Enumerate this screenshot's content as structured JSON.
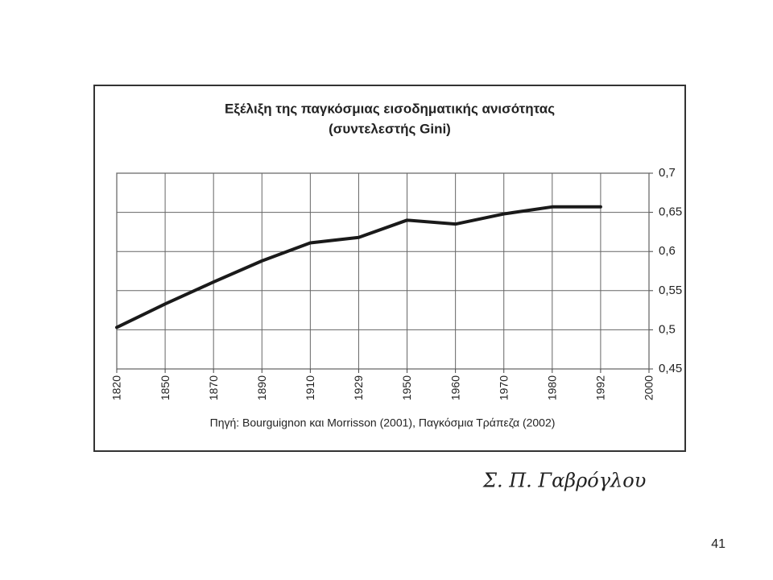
{
  "chart_data": {
    "type": "line",
    "title": "Εξέλιξη της παγκόσμιας εισοδηματικής ανισότητας",
    "subtitle": "(συντελεστής Gini)",
    "categories": [
      "1820",
      "1850",
      "1870",
      "1890",
      "1910",
      "1929",
      "1950",
      "1960",
      "1970",
      "1980",
      "1992",
      "2000"
    ],
    "values": [
      0.503,
      0.533,
      0.561,
      0.588,
      0.611,
      0.618,
      0.64,
      0.635,
      0.648,
      0.657,
      0.657,
      null
    ],
    "color": "#1a1a1a",
    "ylim": [
      0.45,
      0.7
    ],
    "yticks": [
      {
        "value": 0.45,
        "label": "0,45"
      },
      {
        "value": 0.5,
        "label": "0,5"
      },
      {
        "value": 0.55,
        "label": "0,55"
      },
      {
        "value": 0.6,
        "label": "0,6"
      },
      {
        "value": 0.65,
        "label": "0,65"
      },
      {
        "value": 0.7,
        "label": "0,7"
      }
    ],
    "grid": true,
    "source": "Πηγή: Bourguignon και Morrisson (2001), Παγκόσμια Τράπεζα (2002)"
  },
  "signature": "Σ. Π. Γαβρόγλου",
  "page_number": "41"
}
